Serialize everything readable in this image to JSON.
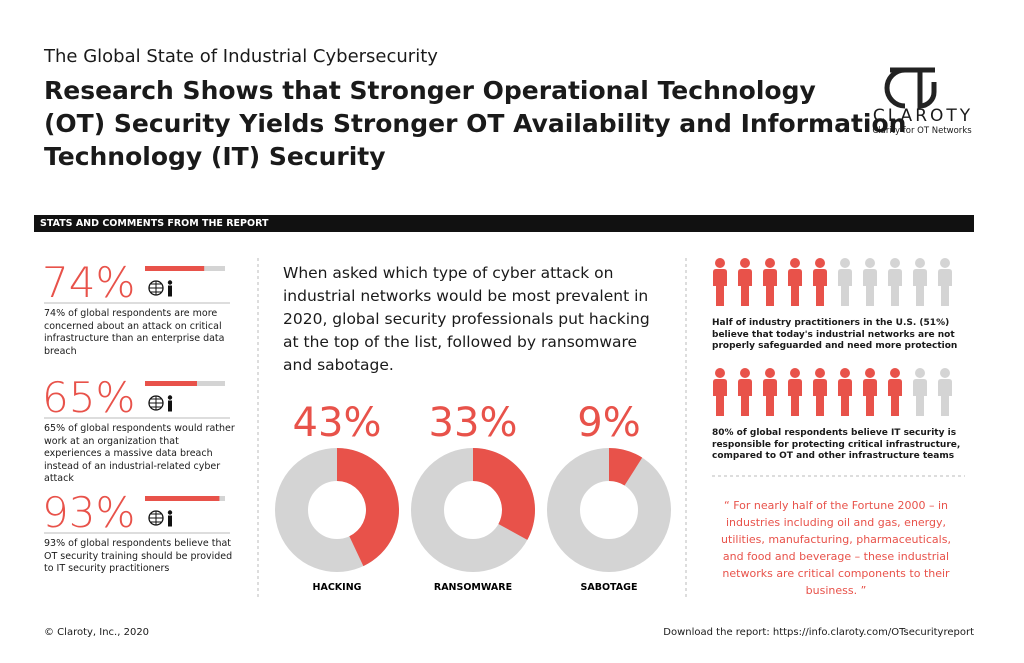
{
  "header": {
    "kicker": "The Global State of Industrial Cybersecurity",
    "title_lines": [
      "Research Shows that Stronger Operational Technology",
      "(OT) Security Yields Stronger OT Availability and Information",
      "Technology (IT) Security"
    ],
    "logo": "CLAROTY",
    "tagline": "Clarity for OT Networks"
  },
  "section_label": "STATS AND COMMENTS FROM THE REPORT",
  "stats": [
    {
      "value": 74,
      "label": "74%",
      "text": "74% of global respondents are more concerned about an attack on critical infrastructure than an enterprise data breach"
    },
    {
      "value": 65,
      "label": "65%",
      "text": "65% of global respondents would rather work at an organization that experiences a massive data breach instead of an industrial-related cyber attack"
    },
    {
      "value": 93,
      "label": "93%",
      "text": "93% of global respondents believe that OT security training should be provided to IT security practitioners"
    }
  ],
  "attack": {
    "intro": "When asked which type of cyber attack on industrial networks would be most prevalent in 2020, global security professionals put hacking at the top of the list, followed by ransomware and sabotage.",
    "donuts": [
      {
        "name": "HACKING",
        "value": 43,
        "label": "43%"
      },
      {
        "name": "RANSOMWARE",
        "value": 33,
        "label": "33%"
      },
      {
        "name": "SABOTAGE",
        "value": 9,
        "label": "9%"
      }
    ]
  },
  "people": [
    {
      "highlighted": 5,
      "total": 10,
      "text": "Half of industry practitioners in the U.S. (51%) believe that today's industrial networks are not properly safeguarded and need more protection"
    },
    {
      "highlighted": 8,
      "total": 10,
      "text": "80% of global respondents believe IT security is responsible for protecting critical infrastructure, compared to OT and other infrastructure teams"
    }
  ],
  "quote": "“ For nearly half of the Fortune 2000 – in industries including oil and gas, energy, utilities, manufacturing, pharmaceuticals, and food and beverage – these industrial networks are critical components to their business. ”",
  "footer": {
    "copyright": "© Claroty, Inc., 2020",
    "download": "Download the report: https://info.claroty.com/OTsecurityreport"
  }
}
